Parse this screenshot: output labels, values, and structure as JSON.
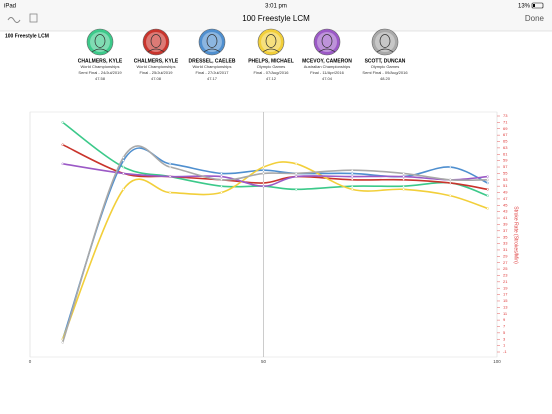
{
  "status_bar": {
    "device": "iPad",
    "time": "3:01 pm",
    "battery": "13%"
  },
  "nav_bar": {
    "title": "100 Freestyle LCM",
    "done": "Done"
  },
  "chart_data": {
    "type": "line",
    "title": "100 Freestyle LCM",
    "y_label": "Stroke Rate (Strokes/Min)",
    "x": [
      7,
      20,
      30,
      41,
      50,
      57,
      69,
      80,
      90,
      98
    ],
    "xlim": [
      0,
      100
    ],
    "xticks": [
      0,
      50,
      100
    ],
    "ylim": [
      -1,
      73
    ],
    "yticks": [
      -1,
      1,
      3,
      5,
      7,
      9,
      11,
      13,
      15,
      17,
      19,
      21,
      23,
      25,
      27,
      29,
      31,
      33,
      35,
      37,
      39,
      41,
      43,
      45,
      47,
      49,
      51,
      53,
      55,
      57,
      59,
      61,
      63,
      65,
      67,
      69,
      71,
      73
    ],
    "grid": true,
    "series": [
      {
        "name": "CHALMERS, KYLE",
        "meet": "World Championships",
        "round": "Semi Final - 24/Jul/2019",
        "time": "47.58",
        "color": "#3cc98a",
        "values": [
          71,
          57,
          54,
          51,
          51,
          50,
          51,
          51,
          52,
          48
        ]
      },
      {
        "name": "CHALMERS, KYLE",
        "meet": "World Championships",
        "round": "Final - 25/Jul/2019",
        "time": "47.08",
        "color": "#c9342c",
        "values": [
          64,
          55,
          54,
          53,
          52,
          54,
          53,
          53,
          52,
          50
        ]
      },
      {
        "name": "DRESSEL, CAELEB",
        "meet": "World Championships",
        "round": "Final - 27/Jul/2017",
        "time": "47.17",
        "color": "#4f8fcf",
        "values": [
          3,
          59,
          58,
          55,
          56,
          55,
          55,
          54,
          57,
          52
        ]
      },
      {
        "name": "PHELPS, MICHAEL",
        "meet": "Olympic Games",
        "round": "Final - 07/Aug/2016",
        "time": "47.12",
        "color": "#f2cf3a",
        "values": [
          3,
          50,
          49,
          49,
          57,
          58,
          50,
          50,
          48,
          44
        ]
      },
      {
        "name": "MCEVOY, CAMERON",
        "meet": "Australian Championships",
        "round": "Final - 11/Apr/2016",
        "time": "47.04",
        "color": "#9b59c6",
        "values": [
          58,
          55,
          54,
          54,
          51,
          54,
          54,
          54,
          53,
          54
        ]
      },
      {
        "name": "SCOTT, DUNCAN",
        "meet": "Olympic Games",
        "round": "Semi Final - 09/Aug/2016",
        "time": "48.20",
        "color": "#a9a9a9",
        "values": [
          2,
          60,
          57,
          53,
          55,
          55,
          56,
          55,
          53,
          53
        ]
      }
    ]
  }
}
